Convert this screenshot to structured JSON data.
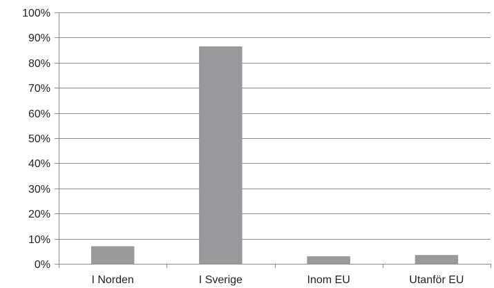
{
  "chart_data": {
    "type": "bar",
    "categories": [
      "I Norden",
      "I Sverige",
      "Inom EU",
      "Utanför EU"
    ],
    "values": [
      7,
      86.5,
      3,
      3.5
    ],
    "y_unit": "%",
    "ylim": [
      0,
      100
    ],
    "yticks": [
      0,
      10,
      20,
      30,
      40,
      50,
      60,
      70,
      80,
      90,
      100
    ],
    "ytick_labels": [
      "0%",
      "10%",
      "20%",
      "30%",
      "40%",
      "50%",
      "60%",
      "70%",
      "80%",
      "90%",
      "100%"
    ],
    "title": "",
    "xlabel": "",
    "ylabel": "",
    "grid": true,
    "legend": "none",
    "colors": {
      "bar": "#9a9a9c",
      "grid": "#8c8c8c",
      "axis": "#8c8c8c",
      "text": "#222222"
    }
  }
}
